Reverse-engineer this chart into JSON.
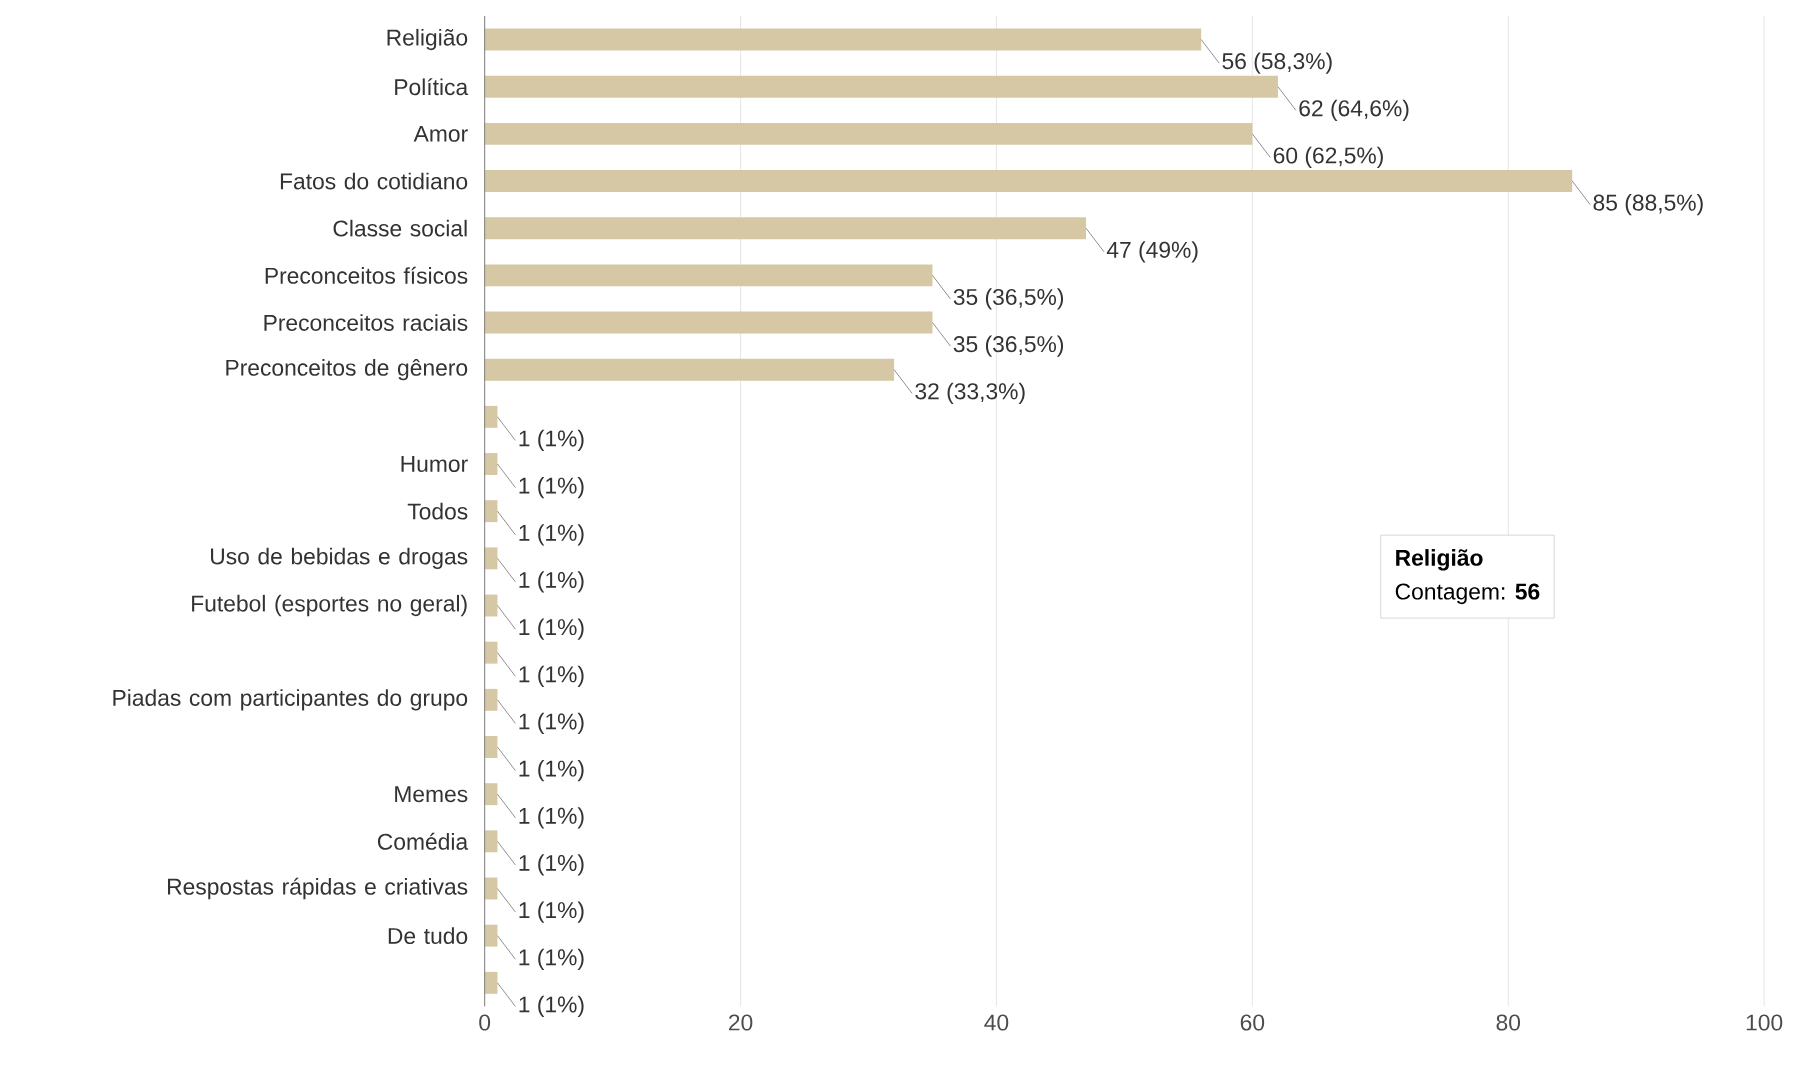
{
  "chart_data": {
    "type": "bar",
    "orientation": "horizontal",
    "categories": [
      "Religião",
      "Política",
      "Amor",
      "Fatos do cotidiano",
      "Classe social",
      "Preconceitos físicos",
      "Preconceitos raciais",
      "Preconceitos de gênero",
      null,
      "Humor",
      "Todos",
      "Uso de bebidas e drogas",
      "Futebol (esportes no geral)",
      null,
      "Piadas com participantes do grupo",
      null,
      "Memes",
      "Comédia",
      "Respostas rápidas e criativas",
      "De tudo",
      null
    ],
    "values": [
      56,
      62,
      60,
      85,
      47,
      35,
      35,
      32,
      1,
      1,
      1,
      1,
      1,
      1,
      1,
      1,
      1,
      1,
      1,
      1,
      1
    ],
    "value_labels": [
      "56 (58,3%)",
      "62 (64,6%)",
      "60 (62,5%)",
      "85 (88,5%)",
      "47 (49%)",
      "35 (36,5%)",
      "35 (36,5%)",
      "32 (33,3%)",
      "1 (1%)",
      "1 (1%)",
      "1 (1%)",
      "1 (1%)",
      "1 (1%)",
      "1 (1%)",
      "1 (1%)",
      "1 (1%)",
      "1 (1%)",
      "1 (1%)",
      "1 (1%)",
      "1 (1%)",
      "1 (1%)"
    ],
    "color": "#d6c8a4",
    "xlim": [
      0,
      100
    ],
    "xticks": [
      0,
      20,
      40,
      60,
      80,
      100
    ],
    "grid": "x",
    "annotations": [
      "Religião",
      "Contagem: **56**"
    ]
  }
}
